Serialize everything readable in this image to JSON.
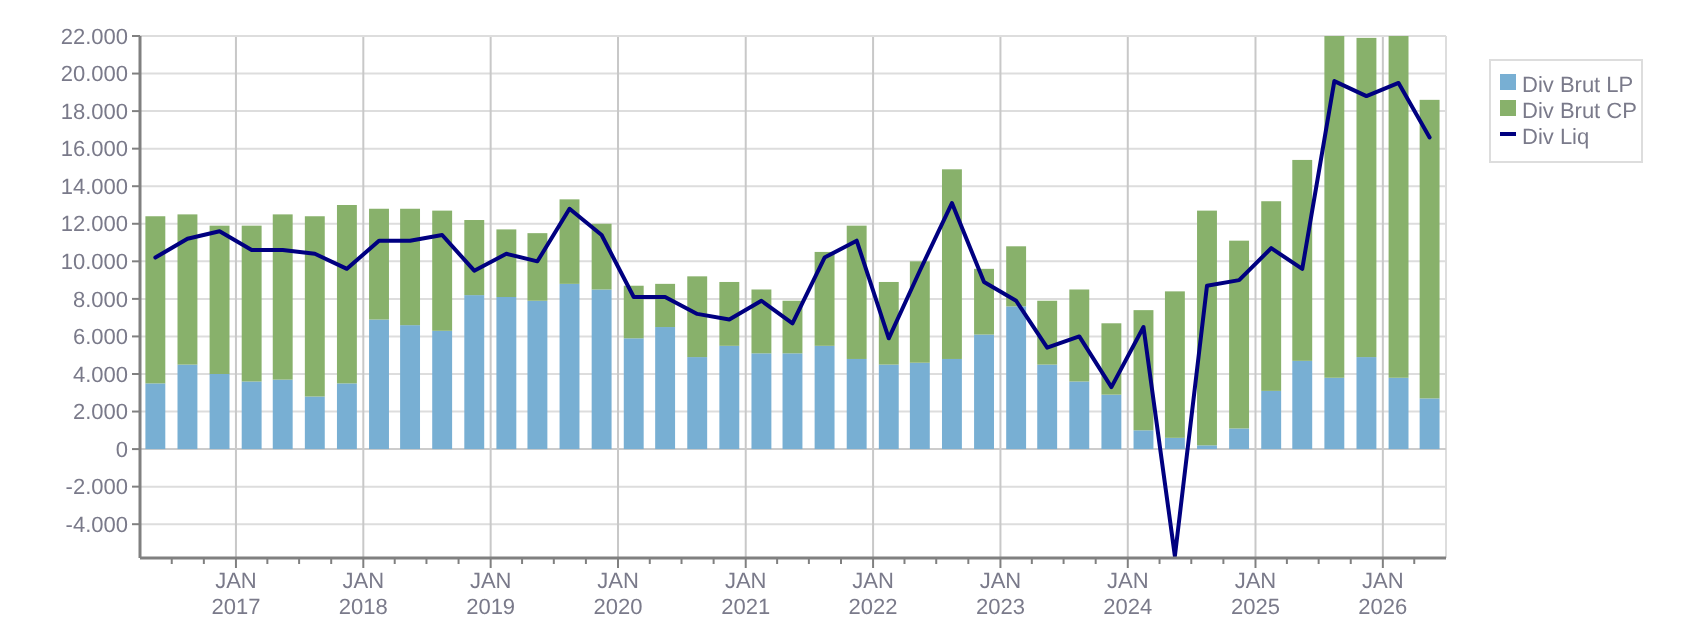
{
  "chart_data": {
    "type": "bar",
    "stacked": true,
    "grid": true,
    "legend": "top right",
    "x": [
      "2016-05-15",
      "2016-08-15",
      "2016-11-15",
      "2017-02-15",
      "2017-05-15",
      "2017-08-15",
      "2017-11-15",
      "2018-02-15",
      "2018-05-15",
      "2018-08-15",
      "2018-11-15",
      "2019-02-15",
      "2019-05-15",
      "2019-08-15",
      "2019-11-15",
      "2020-02-15",
      "2020-05-15",
      "2020-08-15",
      "2020-11-15",
      "2021-02-15",
      "2021-05-15",
      "2021-08-15",
      "2021-11-15",
      "2022-02-15",
      "2022-05-15",
      "2022-08-15",
      "2022-11-15",
      "2023-02-15",
      "2023-05-15",
      "2023-08-15",
      "2023-11-15",
      "2024-02-15",
      "2024-05-15",
      "2024-08-15",
      "2024-11-15",
      "2025-02-15",
      "2025-05-15",
      "2025-08-15",
      "2025-11-15",
      "2026-02-15",
      "2026-05-15"
    ],
    "series": [
      {
        "name": "Div Brut LP",
        "color": "#78afd3",
        "values": [
          3500,
          4500,
          4000,
          3600,
          3700,
          2800,
          3500,
          6900,
          6600,
          6300,
          8200,
          8100,
          7900,
          8800,
          8500,
          5900,
          6500,
          4900,
          5500,
          5100,
          5100,
          5500,
          4800,
          4500,
          4600,
          4800,
          6100,
          7600,
          4500,
          3600,
          2900,
          1000,
          600,
          200,
          1100,
          3100,
          4700,
          3800,
          4900,
          3800,
          2700
        ]
      },
      {
        "name": "Div Brut CP",
        "color": "#88b16b",
        "values": [
          8900,
          8000,
          7900,
          8300,
          8800,
          9600,
          9500,
          5900,
          6200,
          6400,
          4000,
          3600,
          3600,
          4500,
          3500,
          2800,
          2300,
          4300,
          3400,
          3400,
          2800,
          5000,
          7100,
          4400,
          5400,
          10100,
          3500,
          3200,
          3400,
          4900,
          3800,
          6400,
          7800,
          12500,
          10000,
          10100,
          10700,
          18200,
          17000,
          18200,
          15900
        ]
      },
      {
        "name": "Div Liq",
        "type": "line",
        "color": "#000080",
        "values": [
          10200,
          11200,
          11600,
          10600,
          10600,
          10400,
          9600,
          11100,
          11100,
          11400,
          9500,
          10400,
          10000,
          12800,
          11400,
          8100,
          8100,
          7200,
          6900,
          7900,
          6700,
          10200,
          11100,
          5900,
          9500,
          13100,
          8900,
          7900,
          5400,
          6000,
          3300,
          6500,
          -5700,
          8700,
          9000,
          10700,
          9600,
          19600,
          18800,
          19500,
          16600
        ]
      }
    ],
    "xlim": [
      "2016-04-01",
      "2026-07-01"
    ],
    "xticks": [
      {
        "value": "2016-07-01",
        "label": null
      },
      {
        "value": "2016-10-01",
        "label": null
      },
      {
        "value": "2017-01-01",
        "label": "JAN\n2017"
      },
      {
        "value": "2017-04-01",
        "label": null
      },
      {
        "value": "2017-07-01",
        "label": null
      },
      {
        "value": "2017-10-01",
        "label": null
      },
      {
        "value": "2018-01-01",
        "label": "JAN\n2018"
      },
      {
        "value": "2018-04-01",
        "label": null
      },
      {
        "value": "2018-07-01",
        "label": null
      },
      {
        "value": "2018-10-01",
        "label": null
      },
      {
        "value": "2019-01-01",
        "label": "JAN\n2019"
      },
      {
        "value": "2019-04-01",
        "label": null
      },
      {
        "value": "2019-07-01",
        "label": null
      },
      {
        "value": "2019-10-01",
        "label": null
      },
      {
        "value": "2020-01-01",
        "label": "JAN\n2020"
      },
      {
        "value": "2020-04-01",
        "label": null
      },
      {
        "value": "2020-07-01",
        "label": null
      },
      {
        "value": "2020-10-01",
        "label": null
      },
      {
        "value": "2021-01-01",
        "label": "JAN\n2021"
      },
      {
        "value": "2021-04-01",
        "label": null
      },
      {
        "value": "2021-07-01",
        "label": null
      },
      {
        "value": "2021-10-01",
        "label": null
      },
      {
        "value": "2022-01-01",
        "label": "JAN\n2022"
      },
      {
        "value": "2022-04-01",
        "label": null
      },
      {
        "value": "2022-07-01",
        "label": null
      },
      {
        "value": "2022-10-01",
        "label": null
      },
      {
        "value": "2023-01-01",
        "label": "JAN\n2023"
      },
      {
        "value": "2023-04-01",
        "label": null
      },
      {
        "value": "2023-07-01",
        "label": null
      },
      {
        "value": "2023-10-01",
        "label": null
      },
      {
        "value": "2024-01-01",
        "label": "JAN\n2024"
      },
      {
        "value": "2024-04-01",
        "label": null
      },
      {
        "value": "2024-07-01",
        "label": null
      },
      {
        "value": "2024-10-01",
        "label": null
      },
      {
        "value": "2025-01-01",
        "label": "JAN\n2025"
      },
      {
        "value": "2025-04-01",
        "label": null
      },
      {
        "value": "2025-07-01",
        "label": null
      },
      {
        "value": "2025-10-01",
        "label": null
      },
      {
        "value": "2026-01-01",
        "label": "JAN\n2026"
      },
      {
        "value": "2026-04-01",
        "label": null
      }
    ],
    "ylim": [
      -5800,
      22000
    ],
    "yticks": [
      {
        "value": -4000,
        "label": "-4.000"
      },
      {
        "value": -2000,
        "label": "-2.000"
      },
      {
        "value": 0,
        "label": "0"
      },
      {
        "value": 2000,
        "label": "2.000"
      },
      {
        "value": 4000,
        "label": "4.000"
      },
      {
        "value": 6000,
        "label": "6.000"
      },
      {
        "value": 8000,
        "label": "8.000"
      },
      {
        "value": 10000,
        "label": "10.000"
      },
      {
        "value": 12000,
        "label": "12.000"
      },
      {
        "value": 14000,
        "label": "14.000"
      },
      {
        "value": 16000,
        "label": "16.000"
      },
      {
        "value": 18000,
        "label": "18.000"
      },
      {
        "value": 20000,
        "label": "20.000"
      },
      {
        "value": 22000,
        "label": "22.000"
      }
    ]
  }
}
